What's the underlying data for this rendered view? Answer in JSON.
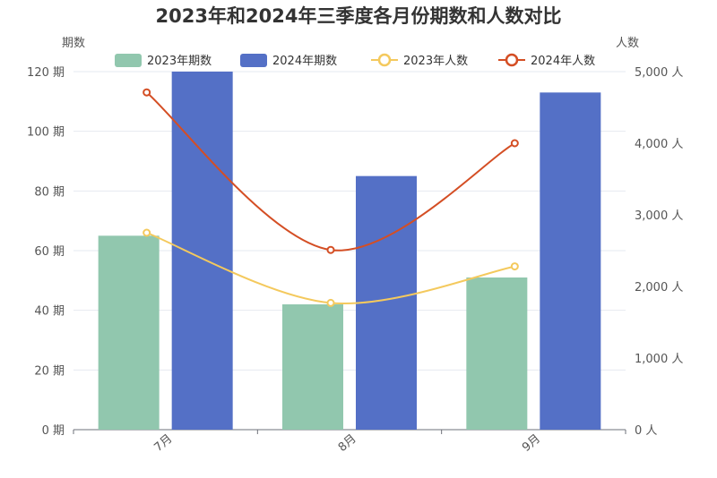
{
  "chart_data": {
    "type": "bar",
    "title": "2023年和2024年三季度各月份期数和人数对比",
    "categories": [
      "7月",
      "8月",
      "9月"
    ],
    "y_left": {
      "label": "期数",
      "range": [
        0,
        120
      ],
      "ticks": [
        "0 期",
        "20 期",
        "40 期",
        "60 期",
        "80 期",
        "100 期",
        "120 期"
      ]
    },
    "y_right": {
      "label": "人数",
      "range": [
        0,
        5000
      ],
      "ticks": [
        "0 人",
        "1,000 人",
        "2,000 人",
        "3,000 人",
        "4,000 人",
        "5,000 人"
      ]
    },
    "series": [
      {
        "name": "2023年期数",
        "kind": "bar",
        "axis": "left",
        "color": "#91c7ae",
        "values": [
          65,
          42,
          51
        ]
      },
      {
        "name": "2024年期数",
        "kind": "bar",
        "axis": "left",
        "color": "#5470c6",
        "values": [
          120,
          85,
          113
        ]
      },
      {
        "name": "2023年人数",
        "kind": "line",
        "axis": "right",
        "color": "#f4c95d",
        "values": [
          2750,
          1770,
          2280
        ]
      },
      {
        "name": "2024年人数",
        "kind": "line",
        "axis": "right",
        "color": "#d44e24",
        "values": [
          4710,
          2510,
          4000
        ]
      }
    ],
    "legend_position": "top-center",
    "grid": true
  }
}
